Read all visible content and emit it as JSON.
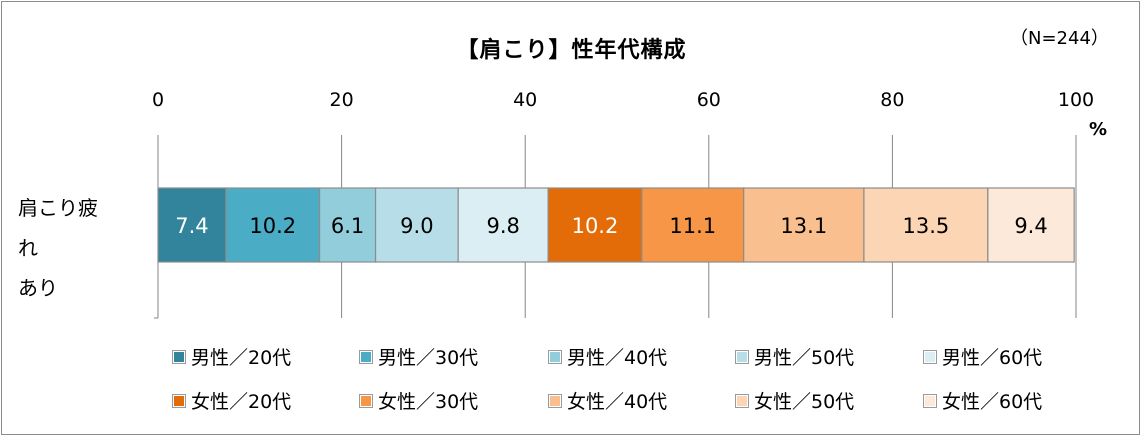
{
  "chart_data": {
    "type": "bar",
    "orientation": "horizontal",
    "stacked": true,
    "title": "【肩こり】性年代構成",
    "note": "（N=244）",
    "unit": "%",
    "categories": [
      "肩こり疲れ\nあり"
    ],
    "xlim": [
      0,
      100
    ],
    "xticks": [
      0,
      20,
      40,
      60,
      80,
      100
    ],
    "grid": true,
    "legend_position": "bottom",
    "series": [
      {
        "name": "男性／20代",
        "values": [
          7.4
        ],
        "color": "#31849b",
        "label_color": "#ffffff"
      },
      {
        "name": "男性／30代",
        "values": [
          10.2
        ],
        "color": "#4bacc6",
        "label_color": "#000000"
      },
      {
        "name": "男性／40代",
        "values": [
          6.1
        ],
        "color": "#92cddc",
        "label_color": "#000000"
      },
      {
        "name": "男性／50代",
        "values": [
          9.0
        ],
        "color": "#b7dee8",
        "label_color": "#000000"
      },
      {
        "name": "男性／60代",
        "values": [
          9.8
        ],
        "color": "#daeef3",
        "label_color": "#000000"
      },
      {
        "name": "女性／20代",
        "values": [
          10.2
        ],
        "color": "#e36c09",
        "label_color": "#ffffff"
      },
      {
        "name": "女性／30代",
        "values": [
          11.1
        ],
        "color": "#f79646",
        "label_color": "#000000"
      },
      {
        "name": "女性／40代",
        "values": [
          13.1
        ],
        "color": "#fabf8f",
        "label_color": "#000000"
      },
      {
        "name": "女性／50代",
        "values": [
          13.5
        ],
        "color": "#fcd5b4",
        "label_color": "#000000"
      },
      {
        "name": "女性／60代",
        "values": [
          9.4
        ],
        "color": "#fde9d9",
        "label_color": "#000000"
      }
    ]
  }
}
